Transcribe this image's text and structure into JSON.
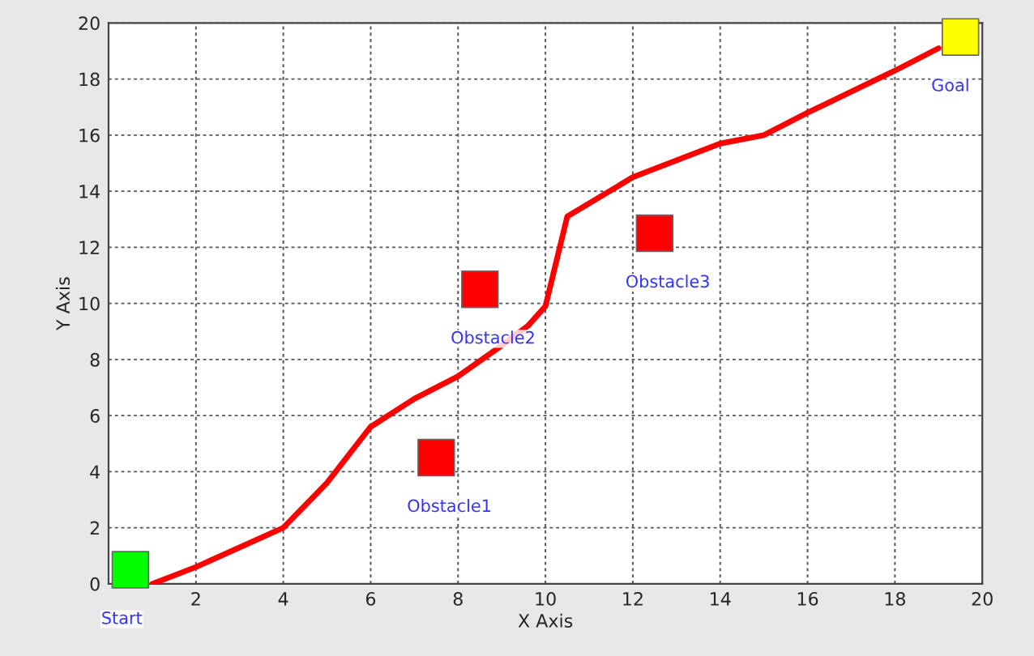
{
  "chart_data": {
    "type": "line",
    "xlabel": "X Axis",
    "ylabel": "Y Axis",
    "xlim": [
      0,
      20
    ],
    "ylim": [
      0,
      20
    ],
    "xticks": [
      {
        "value": 0,
        "label": null
      },
      2,
      4,
      6,
      8,
      10,
      12,
      14,
      16,
      18,
      20
    ],
    "yticks": [
      0,
      2,
      4,
      6,
      8,
      10,
      12,
      14,
      16,
      18,
      20
    ],
    "grid": true,
    "line_style": "solid",
    "series": [
      {
        "color": "#ff0000",
        "x": [
          1,
          2,
          4,
          5,
          6,
          7,
          8,
          9,
          9.6,
          10,
          10.5,
          12,
          14,
          15,
          16,
          18,
          19.0
        ],
        "values": [
          0,
          0.6,
          2.0,
          3.6,
          5.6,
          6.6,
          7.4,
          8.5,
          9.2,
          9.9,
          13.1,
          14.5,
          15.7,
          16.0,
          16.8,
          18.3,
          19.1
        ]
      },
      {
        "type": "scatter",
        "marker": "square",
        "x": [
          0.5,
          7.5,
          8.5,
          12.5,
          19.5
        ],
        "values": [
          0.5,
          4.5,
          10.5,
          12.5,
          19.5
        ],
        "colors": [
          "#00ff00",
          "#ff0000",
          "#ff0000",
          "#ff0000",
          "#ffff00"
        ]
      }
    ],
    "annotations": [
      {
        "text": "Start",
        "x": 0.5,
        "y": 0.5
      },
      {
        "text": "Obstacle1",
        "x": 7.5,
        "y": 4.5
      },
      {
        "text": "Obstacle2",
        "x": 8.5,
        "y": 10.5
      },
      {
        "text": "Obstacle3",
        "x": 12.5,
        "y": 12.5
      },
      {
        "text": "Goal",
        "x": 19.5,
        "y": 19.5
      }
    ]
  }
}
